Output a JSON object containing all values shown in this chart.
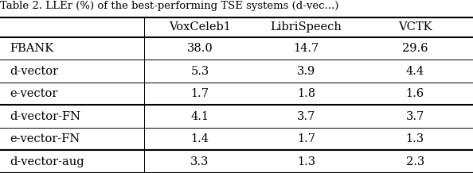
{
  "columns": [
    "VoxCeleb1",
    "LibriSpeech",
    "VCTK"
  ],
  "rows": [
    {
      "label": "FBANK",
      "values": [
        "38.0",
        "14.7",
        "29.6"
      ],
      "group": 0
    },
    {
      "label": "d-vector",
      "values": [
        "5.3",
        "3.9",
        "4.4"
      ],
      "group": 0
    },
    {
      "label": "e-vector",
      "values": [
        "1.7",
        "1.8",
        "1.6"
      ],
      "group": 0
    },
    {
      "label": "d-vector-FN",
      "values": [
        "4.1",
        "3.7",
        "3.7"
      ],
      "group": 1
    },
    {
      "label": "e-vector-FN",
      "values": [
        "1.4",
        "1.7",
        "1.3"
      ],
      "group": 1
    },
    {
      "label": "d-vector-aug",
      "values": [
        "3.3",
        "1.3",
        "2.3"
      ],
      "group": 2
    }
  ],
  "title_text": "Table 2. LLEr (%) of the best-performing TSE systems (d-vec...)",
  "col_bounds": [
    0.0,
    0.305,
    0.54,
    0.755,
    1.0
  ],
  "header_fontsize": 10.5,
  "cell_fontsize": 10.5,
  "figsize": [
    5.94,
    2.18
  ],
  "dpi": 100,
  "title_fontsize": 9.5,
  "lw_thick": 1.5,
  "lw_thin": 0.7,
  "label_indent": 0.01
}
